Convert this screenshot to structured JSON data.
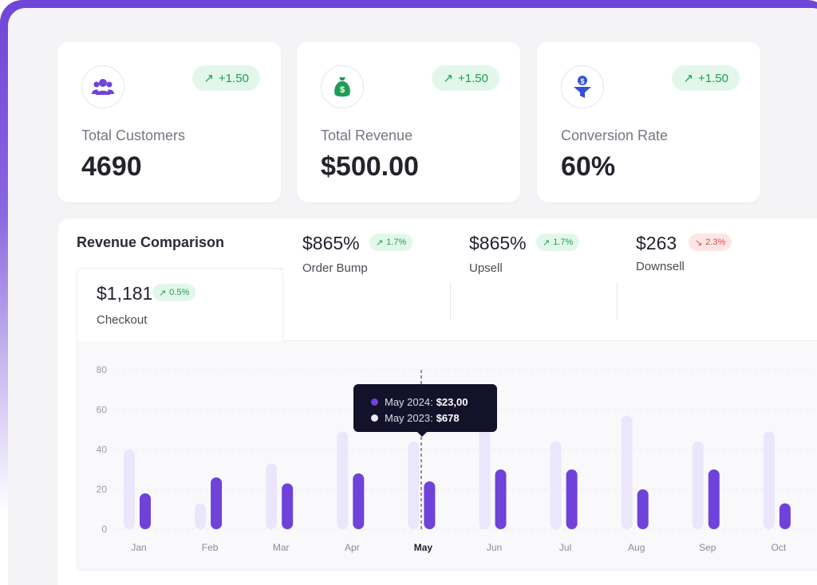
{
  "stats": [
    {
      "icon": "users-icon",
      "label": "Total Customers",
      "value": "4690",
      "change": "+1.50"
    },
    {
      "icon": "money-bag-icon",
      "label": "Total Revenue",
      "value": "$500.00",
      "change": "+1.50"
    },
    {
      "icon": "funnel-dollar-icon",
      "label": "Conversion Rate",
      "value": "60%",
      "change": "+1.50"
    }
  ],
  "revenue": {
    "title": "Revenue Comparison",
    "tabs": [
      {
        "value": "$1,181",
        "change": "0.5%",
        "trend": "up",
        "label": "Checkout"
      },
      {
        "value": "$865%",
        "change": "1.7%",
        "trend": "up",
        "label": "Order Bump"
      },
      {
        "value": "$865%",
        "change": "1.7%",
        "trend": "up",
        "label": "Upsell"
      },
      {
        "value": "$263",
        "change": "2.3%",
        "trend": "down",
        "label": "Downsell"
      }
    ],
    "tooltip": {
      "rows": [
        {
          "label": "May 2024:",
          "value": "$23,00"
        },
        {
          "label": "May 2023:",
          "value": "$678"
        }
      ]
    }
  },
  "colors": {
    "accent": "#6f42d9",
    "accent_light": "#ebe6fb",
    "positive": "#1f9d55",
    "negative": "#e04848"
  },
  "chart_data": {
    "type": "bar",
    "categories": [
      "Jan",
      "Feb",
      "Mar",
      "Apr",
      "May",
      "Jun",
      "Jul",
      "Aug",
      "Sep",
      "Oct"
    ],
    "highlighted_category": "May",
    "series": [
      {
        "values": [
          40,
          13,
          33,
          49,
          44,
          60,
          44,
          57,
          44,
          49
        ]
      },
      {
        "values": [
          18,
          26,
          23,
          28,
          24,
          30,
          30,
          20,
          30,
          13
        ]
      }
    ],
    "yticks": [
      0,
      20,
      40,
      60,
      80
    ],
    "ylim": [
      0,
      80
    ],
    "grid": true
  }
}
